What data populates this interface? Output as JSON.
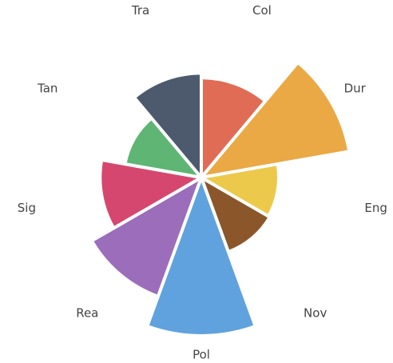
{
  "chart_data": {
    "type": "polar-area",
    "categories": [
      "Col",
      "Dur",
      "Eng",
      "Nov",
      "Pol",
      "Rea",
      "Sig",
      "Tan",
      "Tra"
    ],
    "values": [
      63,
      95,
      49,
      50,
      100,
      80,
      64,
      49,
      66
    ],
    "colors": [
      "#e06c55",
      "#eaa944",
      "#ecc94b",
      "#8b572a",
      "#5fa2dd",
      "#9b6dbb",
      "#d6476f",
      "#5fb574",
      "#4d5a6e"
    ],
    "rlim": [
      0,
      100
    ]
  }
}
